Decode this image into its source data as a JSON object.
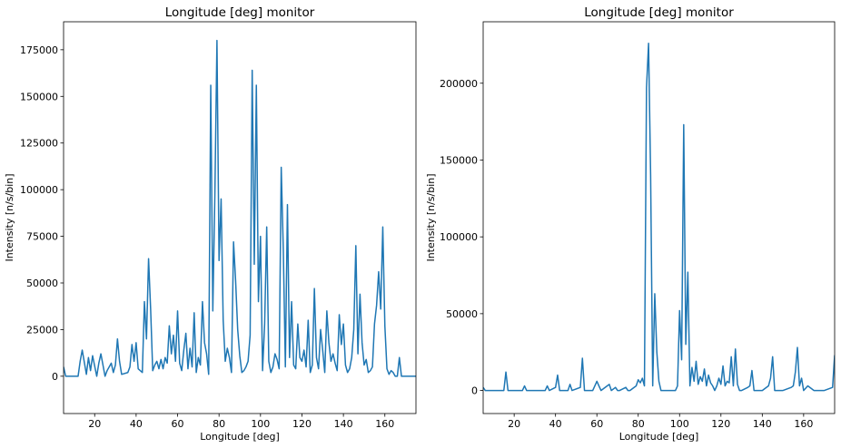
{
  "chart_data": [
    {
      "type": "line",
      "title": "Longitude [deg] monitor",
      "xlabel": "Longitude [deg]",
      "ylabel": "Intensity [n/s/bin]",
      "xlim": [
        5,
        175
      ],
      "ylim": [
        -20000,
        190000
      ],
      "xticks": [
        20,
        40,
        60,
        80,
        100,
        120,
        140,
        160
      ],
      "yticks": [
        0,
        25000,
        50000,
        75000,
        100000,
        125000,
        150000,
        175000
      ],
      "grid": false,
      "color": "#1f77b4",
      "x": [
        5,
        6,
        8,
        12,
        13,
        14,
        16,
        17,
        18,
        19,
        21,
        22,
        23,
        25,
        26,
        28,
        29,
        30,
        31,
        32,
        33,
        36,
        37,
        38,
        39,
        40,
        41,
        42,
        43,
        44,
        45,
        46,
        47,
        48,
        49,
        50,
        51,
        52,
        53,
        54,
        55,
        56,
        57,
        58,
        59,
        60,
        61,
        62,
        63,
        64,
        65,
        66,
        67,
        68,
        69,
        70,
        71,
        72,
        73,
        74,
        75,
        76,
        77,
        78,
        79,
        80,
        81,
        82,
        83,
        84,
        85,
        86,
        87,
        88,
        89,
        90,
        91,
        92,
        93,
        94,
        95,
        96,
        97,
        98,
        99,
        100,
        101,
        102,
        103,
        104,
        105,
        106,
        107,
        108,
        109,
        110,
        111,
        112,
        113,
        114,
        115,
        116,
        117,
        118,
        119,
        120,
        121,
        122,
        123,
        124,
        125,
        126,
        127,
        128,
        129,
        130,
        131,
        132,
        133,
        134,
        135,
        136,
        137,
        138,
        139,
        140,
        141,
        142,
        143,
        144,
        145,
        146,
        147,
        148,
        149,
        150,
        151,
        152,
        153,
        154,
        155,
        156,
        157,
        158,
        159,
        160,
        161,
        162,
        163,
        164,
        165,
        166,
        167,
        168,
        170,
        175
      ],
      "y": [
        5000,
        0,
        0,
        0,
        8000,
        14000,
        1000,
        10000,
        3000,
        11000,
        0,
        7000,
        12000,
        0,
        3000,
        7000,
        2000,
        6000,
        20000,
        8000,
        1000,
        2000,
        5000,
        17000,
        8000,
        18000,
        4000,
        3000,
        2000,
        40000,
        20000,
        63000,
        36000,
        3000,
        6000,
        8000,
        4000,
        9000,
        4000,
        10000,
        7000,
        27000,
        12000,
        22000,
        8000,
        35000,
        7000,
        3000,
        14000,
        23000,
        4000,
        15000,
        5000,
        34000,
        2000,
        10000,
        6000,
        40000,
        18000,
        12000,
        1000,
        156000,
        35000,
        98000,
        180000,
        62000,
        95000,
        30000,
        8000,
        15000,
        10000,
        2000,
        72000,
        51000,
        25000,
        11000,
        2000,
        3000,
        5000,
        8000,
        22000,
        164000,
        60000,
        156000,
        40000,
        75000,
        3000,
        28000,
        80000,
        8000,
        2000,
        5000,
        12000,
        9000,
        4000,
        112000,
        68000,
        5000,
        92000,
        10000,
        40000,
        6000,
        4000,
        28000,
        10000,
        8000,
        14000,
        5000,
        30000,
        2000,
        6000,
        47000,
        10000,
        4000,
        25000,
        14000,
        2000,
        35000,
        18000,
        8000,
        12000,
        7000,
        3000,
        33000,
        17000,
        28000,
        6000,
        2000,
        4000,
        10000,
        25000,
        70000,
        12000,
        44000,
        18000,
        6000,
        9000,
        2000,
        3000,
        5000,
        28000,
        38000,
        56000,
        36000,
        80000,
        27000,
        4000,
        1000,
        3000,
        2000,
        0,
        0,
        10000,
        0,
        0,
        0
      ]
    },
    {
      "type": "line",
      "title": "Longitude [deg] monitor",
      "xlabel": "Longitude [deg]",
      "ylabel": "Intensity [n/s/bin]",
      "xlim": [
        5,
        175
      ],
      "ylim": [
        -15000,
        240000
      ],
      "xticks": [
        20,
        40,
        60,
        80,
        100,
        120,
        140,
        160
      ],
      "yticks": [
        0,
        50000,
        100000,
        150000,
        200000
      ],
      "grid": false,
      "color": "#1f77b4",
      "x": [
        5,
        6,
        8,
        15,
        16,
        17,
        24,
        25,
        26,
        35,
        36,
        37,
        40,
        41,
        42,
        46,
        47,
        48,
        52,
        53,
        54,
        58,
        59,
        60,
        61,
        62,
        65,
        66,
        67,
        69,
        70,
        71,
        74,
        75,
        76,
        79,
        80,
        81,
        82,
        83,
        84,
        85,
        86,
        87,
        88,
        89,
        90,
        91,
        92,
        98,
        99,
        100,
        101,
        102,
        103,
        104,
        105,
        106,
        107,
        108,
        109,
        110,
        111,
        112,
        113,
        114,
        115,
        116,
        117,
        118,
        119,
        120,
        121,
        122,
        123,
        124,
        125,
        126,
        127,
        128,
        129,
        130,
        133,
        134,
        135,
        136,
        140,
        143,
        144,
        145,
        146,
        150,
        154,
        155,
        156,
        157,
        158,
        159,
        160,
        162,
        165,
        170,
        174,
        175
      ],
      "y": [
        2000,
        0,
        0,
        0,
        12000,
        0,
        0,
        3000,
        0,
        0,
        3000,
        0,
        2000,
        10000,
        0,
        0,
        4000,
        0,
        2000,
        21000,
        0,
        0,
        3000,
        6000,
        3000,
        0,
        3000,
        4000,
        0,
        2000,
        0,
        0,
        2000,
        0,
        0,
        3000,
        7000,
        5000,
        8000,
        3000,
        197000,
        226000,
        140000,
        3000,
        63000,
        25000,
        6000,
        0,
        0,
        0,
        3000,
        52000,
        20000,
        173000,
        30000,
        77000,
        3000,
        15000,
        6000,
        19000,
        4000,
        9000,
        6000,
        14000,
        3000,
        10000,
        5000,
        3000,
        0,
        3000,
        8000,
        4000,
        16000,
        3000,
        6000,
        5000,
        22000,
        3000,
        27000,
        4000,
        0,
        0,
        2000,
        3000,
        13000,
        0,
        0,
        3000,
        8000,
        22000,
        0,
        0,
        2000,
        3000,
        12000,
        28000,
        3000,
        8000,
        0,
        3000,
        0,
        0,
        2000,
        23000
      ]
    }
  ]
}
